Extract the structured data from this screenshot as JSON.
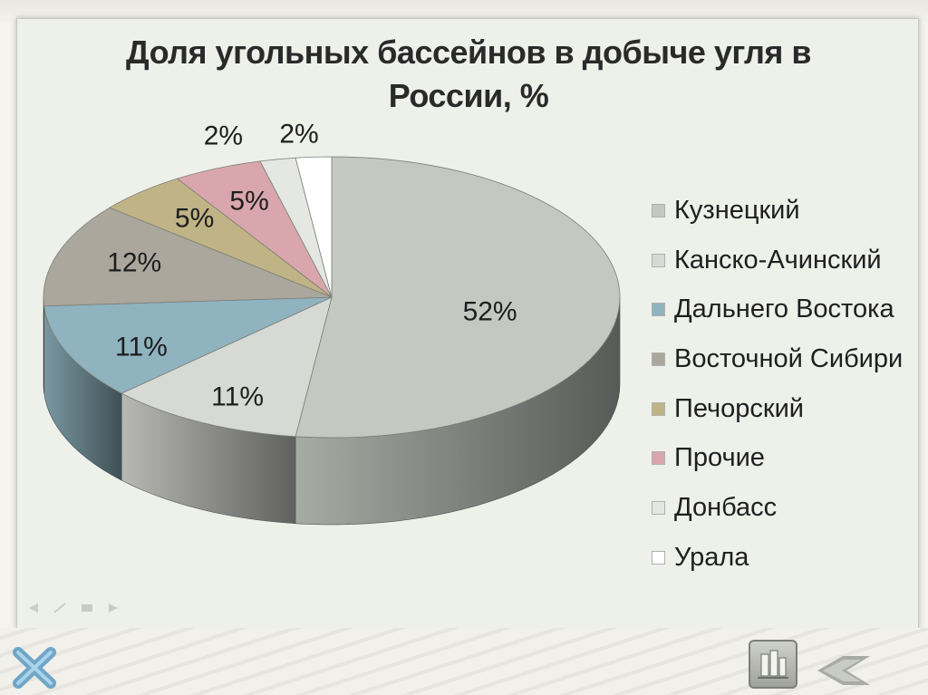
{
  "chart_data": {
    "type": "pie",
    "title": "Доля угольных бассейнов в добыче угля в России, %",
    "title_lines": [
      "Доля угольных бассейнов в добыче угля в",
      "России, %"
    ],
    "categories": [
      "Кузнецкий",
      "Канско-Ачинский",
      "Дальнего Востока",
      "Восточной Сибири",
      "Печорский",
      "Прочие",
      "Донбасс",
      "Урала"
    ],
    "values": [
      52,
      11,
      11,
      12,
      5,
      5,
      2,
      2
    ],
    "data_labels": [
      "52%",
      "11%",
      "11%",
      "12%",
      "5%",
      "5%",
      "2%",
      "2%"
    ],
    "colors": [
      "#c3c9c1",
      "#d7d9d4",
      "#8fb3bf",
      "#aba79d",
      "#c0b486",
      "#d8a6ac",
      "#e5e7e2",
      "#ffffff"
    ],
    "legend_position": "right",
    "three_d": true
  },
  "nav": {
    "close_icon": "close-x-icon",
    "home_icon": "building-icon",
    "back_icon": "back-arrow-icon"
  }
}
